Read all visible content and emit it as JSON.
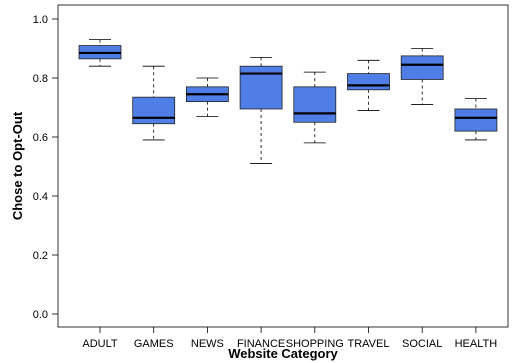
{
  "chart_data": {
    "type": "boxplot",
    "title": "",
    "xlabel": "Website Category",
    "ylabel": "Chose to Opt-Out",
    "ylim": [
      0.0,
      1.0
    ],
    "yticks": [
      "0.0",
      "0.2",
      "0.4",
      "0.6",
      "0.8",
      "1.0"
    ],
    "grid": false,
    "box_color": "#4f7fe6",
    "categories": [
      "ADULT",
      "GAMES",
      "NEWS",
      "FINANCE",
      "SHOPPING",
      "TRAVEL",
      "SOCIAL",
      "HEALTH"
    ],
    "boxes": [
      {
        "min": 0.84,
        "q1": 0.865,
        "median": 0.885,
        "q3": 0.91,
        "max": 0.93
      },
      {
        "min": 0.59,
        "q1": 0.645,
        "median": 0.665,
        "q3": 0.735,
        "max": 0.84
      },
      {
        "min": 0.67,
        "q1": 0.72,
        "median": 0.745,
        "q3": 0.77,
        "max": 0.8
      },
      {
        "min": 0.51,
        "q1": 0.695,
        "median": 0.815,
        "q3": 0.84,
        "max": 0.87
      },
      {
        "min": 0.58,
        "q1": 0.65,
        "median": 0.68,
        "q3": 0.77,
        "max": 0.82
      },
      {
        "min": 0.69,
        "q1": 0.76,
        "median": 0.775,
        "q3": 0.815,
        "max": 0.86
      },
      {
        "min": 0.71,
        "q1": 0.795,
        "median": 0.845,
        "q3": 0.875,
        "max": 0.9
      },
      {
        "min": 0.59,
        "q1": 0.62,
        "median": 0.665,
        "q3": 0.695,
        "max": 0.73
      }
    ]
  }
}
